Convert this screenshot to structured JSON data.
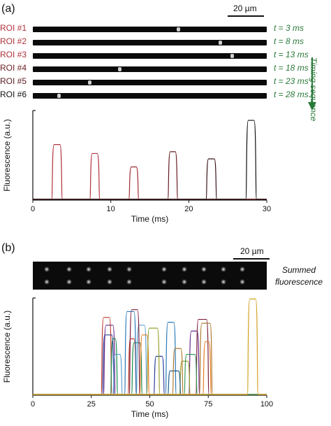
{
  "panel_a": {
    "label": "(a)",
    "scale_bar": "20 µm",
    "timing_label": "Timing sequence",
    "rois": [
      {
        "name": "ROI #1",
        "time": "t = 3 ms",
        "spot": 0.615,
        "color": "#b0303a"
      },
      {
        "name": "ROI #2",
        "time": "t = 8 ms",
        "spot": 0.795,
        "color": "#b0303a"
      },
      {
        "name": "ROI #3",
        "time": "t = 13 ms",
        "spot": 0.845,
        "color": "#b0303a"
      },
      {
        "name": "ROI #4",
        "time": "t = 18 ms",
        "spot": 0.365,
        "color": "#6a1c22"
      },
      {
        "name": "ROI #5",
        "time": "t = 23 ms",
        "spot": 0.235,
        "color": "#5a1a1f"
      },
      {
        "name": "ROI #6",
        "time": "t = 28 ms",
        "spot": 0.105,
        "color": "#111111"
      }
    ]
  },
  "panel_b": {
    "label": "(b)",
    "scale_bar": "20 µm",
    "summed_label_1": "Summed",
    "summed_label_2": "fluorescence"
  },
  "chart_data": [
    {
      "type": "line",
      "xlabel": "Time (ms)",
      "ylabel": "Fluorescence (a.u.)",
      "xlim": [
        0,
        30
      ],
      "xticks": [
        0,
        10,
        20,
        30
      ],
      "ylim": [
        0,
        1
      ],
      "series": [
        {
          "color": "#b0303a",
          "pulses": [
            [
              2.5,
              3.7,
              0.62
            ]
          ]
        },
        {
          "color": "#b0303a",
          "pulses": [
            [
              7.4,
              8.5,
              0.52
            ]
          ]
        },
        {
          "color": "#a02c35",
          "pulses": [
            [
              12.4,
              13.5,
              0.37
            ]
          ]
        },
        {
          "color": "#6a1c22",
          "pulses": [
            [
              17.4,
              18.5,
              0.54
            ]
          ]
        },
        {
          "color": "#3a1418",
          "pulses": [
            [
              22.3,
              23.5,
              0.46
            ]
          ]
        },
        {
          "color": "#111111",
          "pulses": [
            [
              27.4,
              28.6,
              0.89
            ]
          ]
        }
      ]
    },
    {
      "type": "line",
      "xlabel": "Time (ms)",
      "ylabel": "Fluorescence (a.u.)",
      "xlim": [
        0,
        100
      ],
      "xticks": [
        0,
        25,
        50,
        75,
        100
      ],
      "ylim": [
        0,
        1
      ],
      "series": [
        {
          "color": "#c0392b",
          "pulses": [
            [
              29.5,
              33.5,
              0.8
            ],
            [
              41.0,
              44.0,
              0.58
            ]
          ]
        },
        {
          "color": "#2c3e9c",
          "pulses": [
            [
              30.0,
              34.5,
              0.62
            ],
            [
              52.0,
              56.0,
              0.4
            ]
          ]
        },
        {
          "color": "#6a2c8a",
          "pulses": [
            [
              30.5,
              35.0,
              0.72
            ],
            [
              67.0,
              71.0,
              0.66
            ]
          ]
        },
        {
          "color": "#1a8a4a",
          "pulses": [
            [
              33.5,
              36.0,
              0.58
            ],
            [
              42.5,
              46.5,
              0.54
            ]
          ]
        },
        {
          "color": "#5fa0d0",
          "pulses": [
            [
              34.5,
              38.0,
              0.42
            ],
            [
              44.5,
              48.5,
              0.72
            ]
          ]
        },
        {
          "color": "#2b7ab8",
          "pulses": [
            [
              39.5,
              44.0,
              0.86
            ],
            [
              57.0,
              61.0,
              0.75
            ]
          ]
        },
        {
          "color": "#7a1f3d",
          "pulses": [
            [
              41.5,
              45.5,
              0.88
            ],
            [
              70.0,
              75.0,
              0.78
            ]
          ]
        },
        {
          "color": "#e67e22",
          "pulses": [
            [
              46.0,
              49.5,
              0.62
            ],
            [
              73.0,
              76.0,
              0.55
            ]
          ]
        },
        {
          "color": "#9aa030",
          "pulses": [
            [
              49.0,
              54.0,
              0.69
            ],
            [
              63.0,
              67.0,
              0.35
            ]
          ]
        },
        {
          "color": "#1a5a8a",
          "pulses": [
            [
              58.0,
              63.0,
              0.25
            ]
          ]
        },
        {
          "color": "#b07a30",
          "pulses": [
            [
              60.0,
              64.0,
              0.48
            ],
            [
              71.5,
              76.5,
              0.74
            ]
          ]
        },
        {
          "color": "#3a9a5a",
          "pulses": [
            [
              65.0,
              70.0,
              0.42
            ]
          ]
        },
        {
          "color": "#d4a020",
          "pulses": [
            [
              92.0,
              96.0,
              0.99
            ]
          ]
        }
      ]
    }
  ]
}
